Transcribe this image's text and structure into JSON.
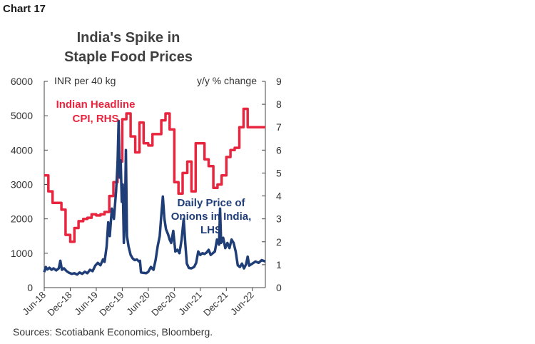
{
  "label": "Chart 17",
  "title": [
    "India's Spike in",
    "Staple Food Prices"
  ],
  "source": "Sources: Scotiabank Economics, Bloomberg.",
  "chart_data": {
    "type": "line",
    "left_axis": {
      "unit_label": "INR per 40 kg",
      "ticks": [
        0,
        1000,
        2000,
        3000,
        4000,
        5000,
        6000
      ],
      "ylim": [
        0,
        6000
      ]
    },
    "right_axis": {
      "unit_label": "y/y % change",
      "ticks": [
        0,
        1,
        2,
        3,
        4,
        5,
        6,
        7,
        8,
        9
      ],
      "ylim": [
        0,
        9
      ]
    },
    "x_tick_labels": [
      "Jun-18",
      "Dec-18",
      "Jun-19",
      "Dec-19",
      "Jun-20",
      "Dec-20",
      "Jun-21",
      "Dec-21",
      "Jun-22"
    ],
    "xlim": [
      2018.42,
      2022.67
    ],
    "grid": false,
    "series": [
      {
        "name": "Indian Headline CPI, RHS",
        "label_lines": [
          "Indian Headline",
          "CPI, RHS"
        ],
        "axis": "right",
        "color": "#e8253e",
        "points": [
          [
            2018.42,
            4.9
          ],
          [
            2018.5,
            4.9
          ],
          [
            2018.5,
            4.2
          ],
          [
            2018.58,
            4.2
          ],
          [
            2018.58,
            3.7
          ],
          [
            2018.67,
            3.7
          ],
          [
            2018.67,
            3.7
          ],
          [
            2018.75,
            3.7
          ],
          [
            2018.75,
            3.4
          ],
          [
            2018.83,
            3.4
          ],
          [
            2018.83,
            2.3
          ],
          [
            2018.92,
            2.3
          ],
          [
            2018.92,
            2.0
          ],
          [
            2019.0,
            2.0
          ],
          [
            2019.0,
            2.6
          ],
          [
            2019.08,
            2.6
          ],
          [
            2019.08,
            2.9
          ],
          [
            2019.17,
            2.9
          ],
          [
            2019.17,
            3.0
          ],
          [
            2019.25,
            3.0
          ],
          [
            2019.25,
            3.05
          ],
          [
            2019.33,
            3.05
          ],
          [
            2019.33,
            3.2
          ],
          [
            2019.42,
            3.2
          ],
          [
            2019.42,
            3.15
          ],
          [
            2019.5,
            3.15
          ],
          [
            2019.5,
            3.2
          ],
          [
            2019.58,
            3.2
          ],
          [
            2019.58,
            3.3
          ],
          [
            2019.67,
            3.3
          ],
          [
            2019.67,
            4.0
          ],
          [
            2019.75,
            4.0
          ],
          [
            2019.75,
            4.6
          ],
          [
            2019.83,
            4.6
          ],
          [
            2019.83,
            5.5
          ],
          [
            2019.92,
            5.5
          ],
          [
            2019.92,
            7.35
          ],
          [
            2020.0,
            7.35
          ],
          [
            2020.0,
            7.6
          ],
          [
            2020.08,
            7.6
          ],
          [
            2020.08,
            6.6
          ],
          [
            2020.17,
            6.6
          ],
          [
            2020.17,
            5.9
          ],
          [
            2020.25,
            5.9
          ],
          [
            2020.25,
            7.2
          ],
          [
            2020.33,
            7.2
          ],
          [
            2020.33,
            6.3
          ],
          [
            2020.42,
            6.3
          ],
          [
            2020.42,
            6.2
          ],
          [
            2020.5,
            6.2
          ],
          [
            2020.5,
            6.7
          ],
          [
            2020.58,
            6.7
          ],
          [
            2020.58,
            6.7
          ],
          [
            2020.67,
            6.7
          ],
          [
            2020.67,
            7.3
          ],
          [
            2020.75,
            7.3
          ],
          [
            2020.75,
            7.6
          ],
          [
            2020.83,
            7.6
          ],
          [
            2020.83,
            6.9
          ],
          [
            2020.92,
            6.9
          ],
          [
            2020.92,
            4.6
          ],
          [
            2021.0,
            4.6
          ],
          [
            2021.0,
            4.1
          ],
          [
            2021.08,
            4.1
          ],
          [
            2021.08,
            5.0
          ],
          [
            2021.17,
            5.0
          ],
          [
            2021.17,
            5.5
          ],
          [
            2021.25,
            5.5
          ],
          [
            2021.25,
            4.2
          ],
          [
            2021.33,
            4.2
          ],
          [
            2021.33,
            6.3
          ],
          [
            2021.42,
            6.3
          ],
          [
            2021.42,
            6.3
          ],
          [
            2021.5,
            6.3
          ],
          [
            2021.5,
            5.6
          ],
          [
            2021.58,
            5.6
          ],
          [
            2021.58,
            5.3
          ],
          [
            2021.67,
            5.3
          ],
          [
            2021.67,
            4.35
          ],
          [
            2021.75,
            4.35
          ],
          [
            2021.75,
            4.5
          ],
          [
            2021.83,
            4.5
          ],
          [
            2021.83,
            4.9
          ],
          [
            2021.92,
            4.9
          ],
          [
            2021.92,
            5.7
          ],
          [
            2022.0,
            5.7
          ],
          [
            2022.0,
            6.0
          ],
          [
            2022.08,
            6.0
          ],
          [
            2022.08,
            6.1
          ],
          [
            2022.17,
            6.1
          ],
          [
            2022.17,
            7.0
          ],
          [
            2022.25,
            7.0
          ],
          [
            2022.25,
            7.8
          ],
          [
            2022.33,
            7.8
          ],
          [
            2022.33,
            7.0
          ],
          [
            2022.42,
            7.0
          ],
          [
            2022.42,
            7.0
          ],
          [
            2022.67,
            7.0
          ]
        ]
      },
      {
        "name": "Daily Price of Onions in India, LHS",
        "label_lines": [
          "Daily Price of",
          "Onions in India,",
          "LHS"
        ],
        "axis": "left",
        "color": "#1f3e78",
        "points": [
          [
            2018.42,
            450
          ],
          [
            2018.45,
            600
          ],
          [
            2018.48,
            530
          ],
          [
            2018.52,
            580
          ],
          [
            2018.56,
            520
          ],
          [
            2018.6,
            560
          ],
          [
            2018.65,
            500
          ],
          [
            2018.7,
            560
          ],
          [
            2018.73,
            780
          ],
          [
            2018.76,
            520
          ],
          [
            2018.8,
            560
          ],
          [
            2018.85,
            480
          ],
          [
            2018.9,
            430
          ],
          [
            2018.95,
            400
          ],
          [
            2019.0,
            420
          ],
          [
            2019.05,
            380
          ],
          [
            2019.1,
            440
          ],
          [
            2019.15,
            400
          ],
          [
            2019.2,
            460
          ],
          [
            2019.25,
            420
          ],
          [
            2019.3,
            520
          ],
          [
            2019.35,
            480
          ],
          [
            2019.4,
            640
          ],
          [
            2019.45,
            720
          ],
          [
            2019.5,
            650
          ],
          [
            2019.55,
            820
          ],
          [
            2019.58,
            750
          ],
          [
            2019.62,
            1200
          ],
          [
            2019.65,
            1900
          ],
          [
            2019.68,
            1500
          ],
          [
            2019.72,
            2300
          ],
          [
            2019.76,
            2000
          ],
          [
            2019.8,
            2800
          ],
          [
            2019.83,
            3600
          ],
          [
            2019.85,
            4850
          ],
          [
            2019.87,
            3200
          ],
          [
            2019.89,
            3700
          ],
          [
            2019.91,
            2500
          ],
          [
            2019.93,
            3000
          ],
          [
            2019.95,
            1300
          ],
          [
            2019.97,
            2000
          ],
          [
            2019.99,
            4000
          ],
          [
            2020.01,
            1500
          ],
          [
            2020.04,
            1200
          ],
          [
            2020.08,
            950
          ],
          [
            2020.12,
            850
          ],
          [
            2020.16,
            800
          ],
          [
            2020.2,
            820
          ],
          [
            2020.24,
            760
          ],
          [
            2020.26,
            780
          ],
          [
            2020.28,
            440
          ],
          [
            2020.32,
            430
          ],
          [
            2020.38,
            420
          ],
          [
            2020.42,
            460
          ],
          [
            2020.47,
            600
          ],
          [
            2020.52,
            520
          ],
          [
            2020.56,
            800
          ],
          [
            2020.6,
            1200
          ],
          [
            2020.64,
            1500
          ],
          [
            2020.67,
            2100
          ],
          [
            2020.7,
            2650
          ],
          [
            2020.73,
            2000
          ],
          [
            2020.76,
            1700
          ],
          [
            2020.8,
            1550
          ],
          [
            2020.83,
            1400
          ],
          [
            2020.86,
            1300
          ],
          [
            2020.9,
            1650
          ],
          [
            2020.94,
            1050
          ],
          [
            2020.98,
            1100
          ],
          [
            2021.02,
            1000
          ],
          [
            2021.06,
            1400
          ],
          [
            2021.1,
            2000
          ],
          [
            2021.13,
            1300
          ],
          [
            2021.16,
            700
          ],
          [
            2021.2,
            570
          ],
          [
            2021.25,
            560
          ],
          [
            2021.3,
            600
          ],
          [
            2021.34,
            720
          ],
          [
            2021.38,
            1050
          ],
          [
            2021.42,
            950
          ],
          [
            2021.46,
            1000
          ],
          [
            2021.5,
            980
          ],
          [
            2021.54,
            1020
          ],
          [
            2021.58,
            1100
          ],
          [
            2021.62,
            950
          ],
          [
            2021.66,
            1000
          ],
          [
            2021.7,
            1050
          ],
          [
            2021.74,
            1400
          ],
          [
            2021.78,
            1250
          ],
          [
            2021.8,
            2300
          ],
          [
            2021.82,
            1300
          ],
          [
            2021.86,
            1450
          ],
          [
            2021.9,
            1150
          ],
          [
            2021.94,
            1300
          ],
          [
            2021.98,
            1150
          ],
          [
            2022.02,
            1400
          ],
          [
            2022.06,
            1300
          ],
          [
            2022.1,
            1050
          ],
          [
            2022.14,
            650
          ],
          [
            2022.18,
            600
          ],
          [
            2022.22,
            700
          ],
          [
            2022.26,
            560
          ],
          [
            2022.3,
            680
          ],
          [
            2022.33,
            900
          ],
          [
            2022.36,
            640
          ],
          [
            2022.42,
            700
          ],
          [
            2022.48,
            760
          ],
          [
            2022.54,
            720
          ],
          [
            2022.6,
            800
          ],
          [
            2022.67,
            760
          ]
        ]
      }
    ]
  }
}
